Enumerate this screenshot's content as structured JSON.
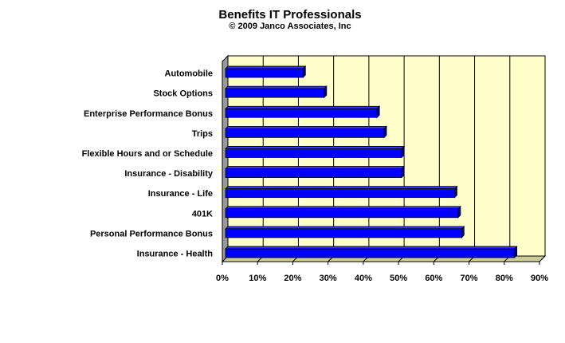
{
  "chart_data": {
    "type": "bar",
    "orientation": "horizontal",
    "style": "3d",
    "title": "Benefits IT Professionals",
    "subtitle": "© 2009 Janco Associates, Inc",
    "categories": [
      "Automobile",
      "Stock Options",
      "Enterprise Performance Bonus",
      "Trips",
      "Flexible Hours and or Schedule",
      "Insurance - Disability",
      "Insurance - Life",
      "401K",
      "Personal Performance Bonus",
      "Insurance - Health"
    ],
    "values": [
      22,
      28,
      43,
      45,
      50,
      50,
      65,
      66,
      67,
      82
    ],
    "xlim": [
      0,
      90
    ],
    "xticks": [
      "0%",
      "10%",
      "20%",
      "30%",
      "40%",
      "50%",
      "60%",
      "70%",
      "80%",
      "90%"
    ],
    "grid": "vertical",
    "legend": "none",
    "colors": {
      "bar": "#0000ff",
      "bar_top": "#3333ff",
      "bar_side": "#00007a",
      "plot_back": "#ffffcc",
      "plot_floor": "#cccc99",
      "plot_wall": "#999999",
      "grid": "#000000"
    }
  }
}
